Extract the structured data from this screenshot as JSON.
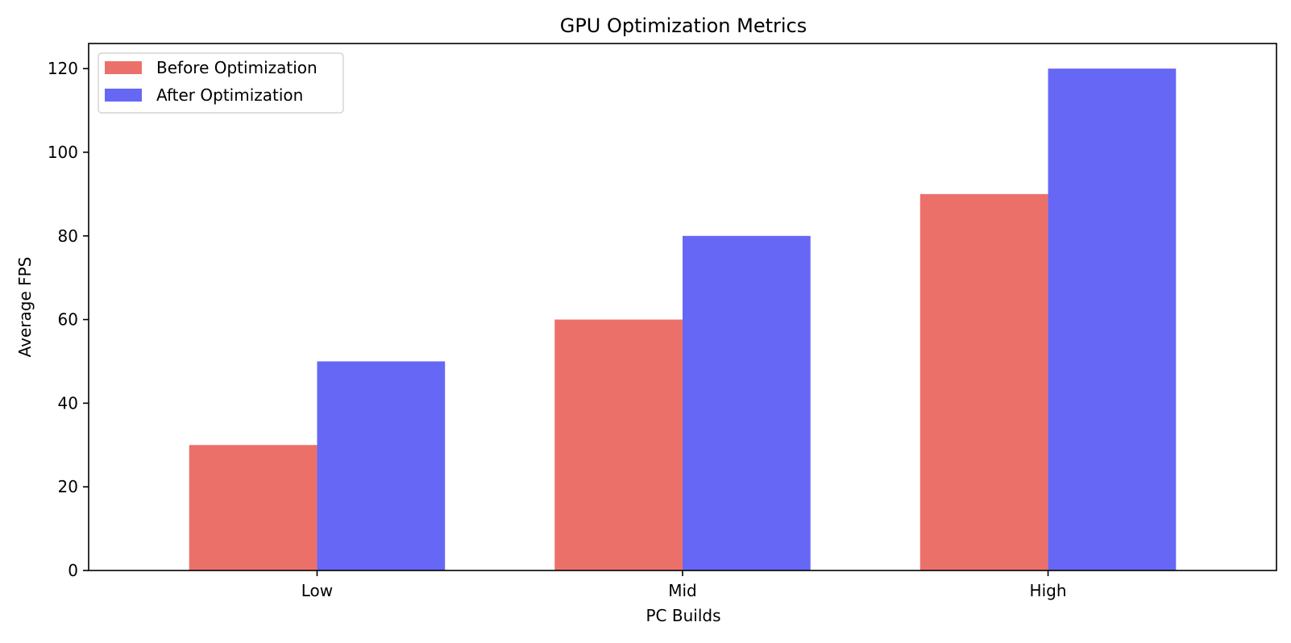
{
  "chart_data": {
    "type": "bar",
    "title": "GPU Optimization Metrics",
    "xlabel": "PC Builds",
    "ylabel": "Average FPS",
    "categories": [
      "Low",
      "Mid",
      "High"
    ],
    "series": [
      {
        "name": "Before Optimization",
        "values": [
          30,
          60,
          90
        ],
        "color": "#ec706a"
      },
      {
        "name": "After Optimization",
        "values": [
          50,
          80,
          120
        ],
        "color": "#6767f5"
      }
    ],
    "ylim": [
      0,
      126
    ],
    "yticks": [
      0,
      20,
      40,
      60,
      80,
      100,
      120
    ],
    "grid": false,
    "legend_position": "top-left"
  }
}
